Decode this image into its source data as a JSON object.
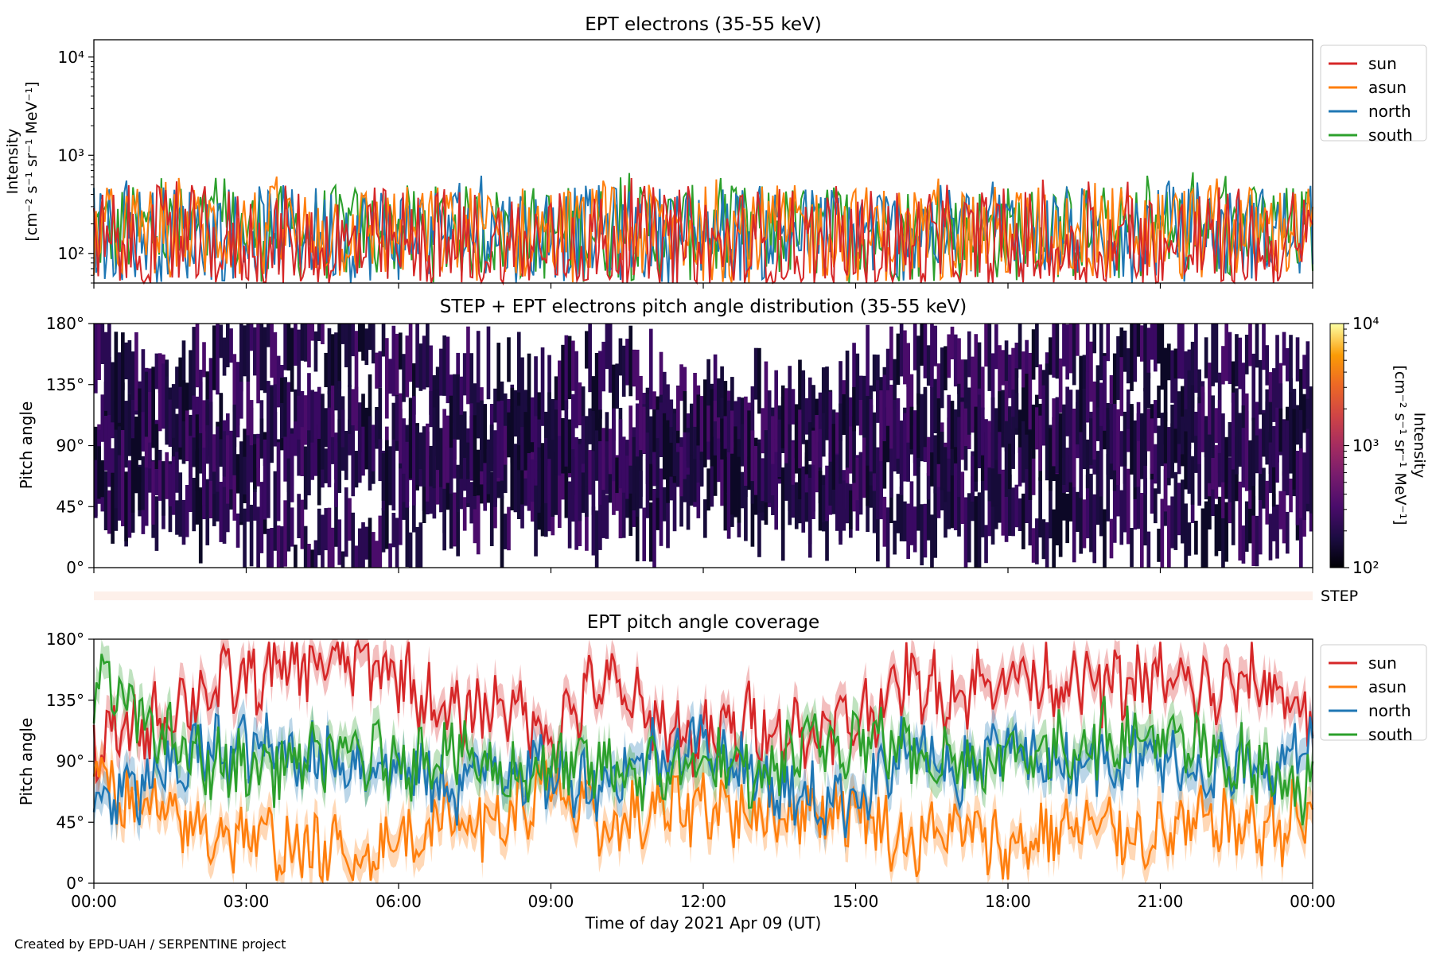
{
  "figure": {
    "footer": "Created by EPD-UAH / SERPENTINE project",
    "xlabel": "Time of day 2021 Apr 09 (UT)",
    "x_ticks": [
      "00:00",
      "03:00",
      "06:00",
      "09:00",
      "12:00",
      "15:00",
      "18:00",
      "21:00",
      "00:00"
    ]
  },
  "colors": {
    "sun": "#d62728",
    "asun": "#ff7f0e",
    "north": "#1f77b4",
    "south": "#2ca02c",
    "step_band": "#fdf0ea"
  },
  "chart_data": [
    {
      "type": "line",
      "title": "EPT electrons (35-55 keV)",
      "ylabel": [
        "Intensity",
        "[cm⁻² s⁻¹ sr⁻¹ MeV⁻¹]"
      ],
      "y_scale": "log",
      "ylim": [
        50,
        15000
      ],
      "y_ticks": [
        "10⁴",
        "10³",
        "10²"
      ],
      "y_tick_values": [
        10000,
        1000,
        100
      ],
      "xlim_hours": [
        0,
        24
      ],
      "legend": "top-right",
      "series_names": [
        "sun",
        "asun",
        "north",
        "south"
      ],
      "series_notes": "noisy 1-minute intensities fluctuating roughly between 50 and 500 for all viewing directions over the full day",
      "typical_range": [
        50,
        500
      ],
      "peak_values": {
        "sun": 600,
        "asun": 620,
        "north": 650,
        "south": 680
      }
    },
    {
      "type": "heatmap",
      "title": "STEP + EPT electrons pitch angle distribution (35-55 keV)",
      "ylabel": "Pitch angle",
      "ylim": [
        0,
        180
      ],
      "y_ticks": [
        "180°",
        "135°",
        "90°",
        "45°",
        "0°"
      ],
      "y_tick_values": [
        180,
        135,
        90,
        45,
        0
      ],
      "colorbar": {
        "label": [
          "Intensity",
          "[cm⁻² s⁻¹ sr⁻¹ MeV⁻¹]"
        ],
        "scale": "log",
        "range": [
          100,
          10000
        ],
        "ticks": [
          "10⁴",
          "10³",
          "10²"
        ],
        "tick_values": [
          10000,
          1000,
          100
        ],
        "colormap": "inferno"
      },
      "typical_intensity": [
        100,
        300
      ],
      "step_label": "STEP"
    },
    {
      "type": "line",
      "title": "EPT pitch angle coverage",
      "ylabel": "Pitch angle",
      "ylim": [
        0,
        180
      ],
      "y_ticks": [
        "180°",
        "135°",
        "90°",
        "45°",
        "0°"
      ],
      "y_tick_values": [
        180,
        135,
        90,
        45,
        0
      ],
      "legend": "top-right",
      "hours": [
        0,
        1,
        2,
        3,
        4,
        5,
        6,
        7,
        8,
        9,
        10,
        11,
        12,
        13,
        14,
        15,
        16,
        17,
        18,
        19,
        20,
        21,
        22,
        23,
        24
      ],
      "series": [
        {
          "name": "sun",
          "values": [
            100,
            115,
            140,
            150,
            160,
            165,
            155,
            120,
            135,
            110,
            150,
            120,
            105,
            120,
            110,
            120,
            150,
            140,
            155,
            150,
            145,
            150,
            140,
            150,
            125
          ]
        },
        {
          "name": "asun",
          "values": [
            80,
            55,
            40,
            35,
            25,
            20,
            30,
            50,
            45,
            70,
            40,
            50,
            60,
            50,
            55,
            55,
            30,
            40,
            25,
            40,
            40,
            35,
            45,
            40,
            50
          ]
        },
        {
          "name": "north",
          "values": [
            60,
            70,
            95,
            100,
            95,
            90,
            85,
            70,
            90,
            80,
            75,
            95,
            105,
            80,
            60,
            65,
            95,
            85,
            100,
            90,
            95,
            90,
            85,
            80,
            105
          ]
        },
        {
          "name": "south",
          "values": [
            150,
            120,
            90,
            85,
            90,
            95,
            90,
            100,
            80,
            85,
            85,
            80,
            90,
            75,
            100,
            110,
            100,
            90,
            95,
            100,
            110,
            105,
            95,
            85,
            70
          ]
        }
      ],
      "band_halfwidth_deg": 12
    }
  ]
}
